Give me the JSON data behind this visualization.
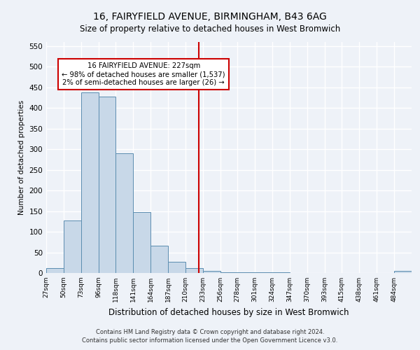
{
  "title": "16, FAIRYFIELD AVENUE, BIRMINGHAM, B43 6AG",
  "subtitle": "Size of property relative to detached houses in West Bromwich",
  "xlabel": "Distribution of detached houses by size in West Bromwich",
  "ylabel": "Number of detached properties",
  "bar_color": "#c8d8e8",
  "bar_edge_color": "#5b8db0",
  "background_color": "#eef2f8",
  "grid_color": "#ffffff",
  "bin_labels": [
    "27sqm",
    "50sqm",
    "73sqm",
    "96sqm",
    "118sqm",
    "141sqm",
    "164sqm",
    "187sqm",
    "210sqm",
    "233sqm",
    "256sqm",
    "278sqm",
    "301sqm",
    "324sqm",
    "347sqm",
    "370sqm",
    "393sqm",
    "415sqm",
    "438sqm",
    "461sqm",
    "484sqm"
  ],
  "bar_heights": [
    12,
    128,
    437,
    427,
    291,
    148,
    67,
    27,
    12,
    5,
    2,
    1,
    1,
    1,
    0,
    0,
    0,
    0,
    0,
    0,
    5
  ],
  "bin_edges": [
    27,
    50,
    73,
    96,
    118,
    141,
    164,
    187,
    210,
    233,
    256,
    278,
    301,
    324,
    347,
    370,
    393,
    415,
    438,
    461,
    484,
    507
  ],
  "property_value": 227,
  "vline_color": "#cc0000",
  "annotation_line1": "16 FAIRYFIELD AVENUE: 227sqm",
  "annotation_line2": "← 98% of detached houses are smaller (1,537)",
  "annotation_line3": "2% of semi-detached houses are larger (26) →",
  "annotation_box_color": "#cc0000",
  "ylim": [
    0,
    560
  ],
  "yticks": [
    0,
    50,
    100,
    150,
    200,
    250,
    300,
    350,
    400,
    450,
    500,
    550
  ],
  "footer_line1": "Contains HM Land Registry data © Crown copyright and database right 2024.",
  "footer_line2": "Contains public sector information licensed under the Open Government Licence v3.0."
}
